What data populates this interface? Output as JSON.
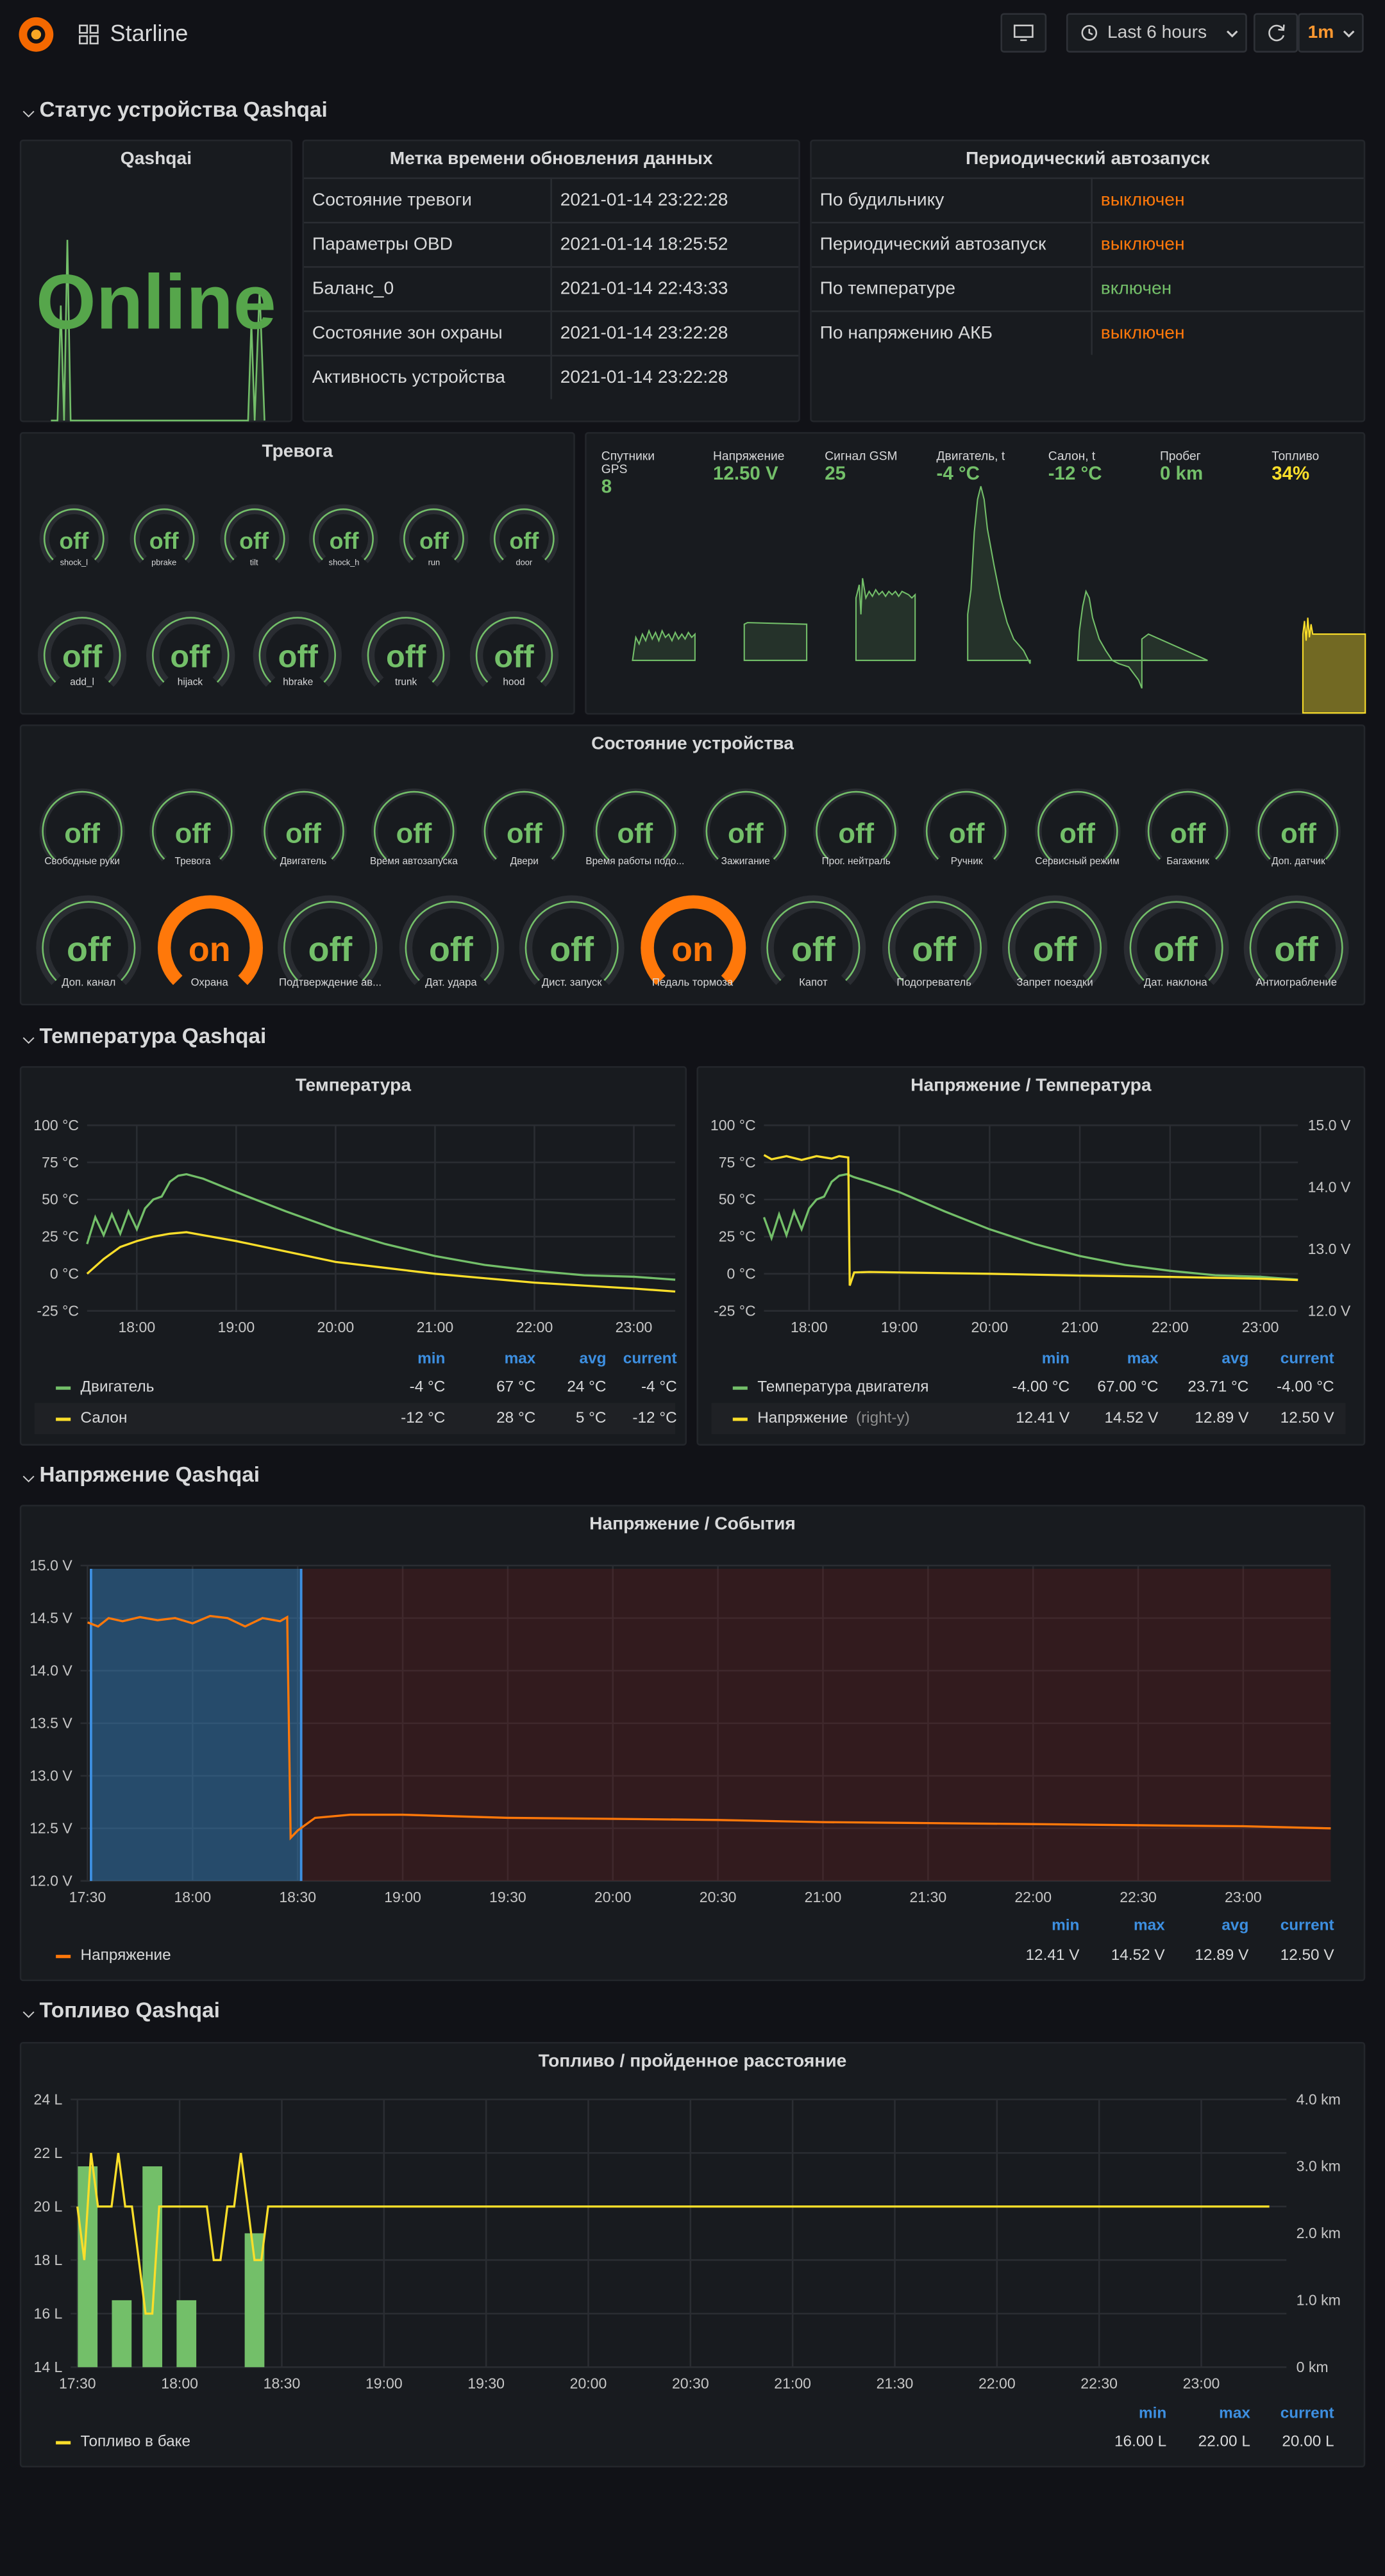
{
  "header": {
    "title": "Starline",
    "time_range": "Last 6 hours",
    "refresh": "1m"
  },
  "rows": {
    "status": "Статус устройства Qashqai",
    "temperature": "Температура Qashqai",
    "voltage": "Напряжение Qashqai",
    "fuel": "Топливо Qashqai"
  },
  "qashqai": {
    "title": "Qashqai",
    "value": "Online"
  },
  "timestamps": {
    "title": "Метка времени обновления данных",
    "rows": [
      {
        "label": "Состояние тревоги",
        "value": "2021-01-14 23:22:28"
      },
      {
        "label": "Параметры OBD",
        "value": "2021-01-14 18:25:52"
      },
      {
        "label": "Баланс_0",
        "value": "2021-01-14 22:43:33"
      },
      {
        "label": "Состояние зон охраны",
        "value": "2021-01-14 23:22:28"
      },
      {
        "label": "Активность устройства",
        "value": "2021-01-14 23:22:28"
      }
    ]
  },
  "autostart": {
    "title": "Периодический автозапуск",
    "rows": [
      {
        "label": "По будильнику",
        "value": "выключен",
        "color": "#ff780a"
      },
      {
        "label": "Периодический автозапуск",
        "value": "выключен",
        "color": "#ff780a"
      },
      {
        "label": "По температуре",
        "value": "включен",
        "color": "#73bf69"
      },
      {
        "label": "По напряжению АКБ",
        "value": "выключен",
        "color": "#ff780a"
      }
    ]
  },
  "alarm": {
    "title": "Тревога",
    "small": [
      {
        "label": "shock_l",
        "value": "off"
      },
      {
        "label": "pbrake",
        "value": "off"
      },
      {
        "label": "tilt",
        "value": "off"
      },
      {
        "label": "shock_h",
        "value": "off"
      },
      {
        "label": "run",
        "value": "off"
      },
      {
        "label": "door",
        "value": "off"
      }
    ],
    "large": [
      {
        "label": "add_l",
        "value": "off"
      },
      {
        "label": "hijack",
        "value": "off"
      },
      {
        "label": "hbrake",
        "value": "off"
      },
      {
        "label": "trunk",
        "value": "off"
      },
      {
        "label": "hood",
        "value": "off"
      }
    ]
  },
  "stats": [
    {
      "title": "Спутники GPS",
      "value": "8",
      "color": "#73bf69"
    },
    {
      "title": "Напряжение",
      "value": "12.50 V",
      "color": "#73bf69"
    },
    {
      "title": "Сигнал GSM",
      "value": "25",
      "color": "#73bf69"
    },
    {
      "title": "Двигатель, t",
      "value": "-4 °C",
      "color": "#73bf69"
    },
    {
      "title": "Салон, t",
      "value": "-12 °C",
      "color": "#73bf69"
    },
    {
      "title": "Пробег",
      "value": "0 km",
      "color": "#73bf69"
    },
    {
      "title": "Топливо",
      "value": "34%",
      "color": "#fade2a"
    }
  ],
  "device": {
    "title": "Состояние устройства",
    "row1": [
      {
        "label": "Свободные руки",
        "value": "off"
      },
      {
        "label": "Тревога",
        "value": "off"
      },
      {
        "label": "Двигатель",
        "value": "off"
      },
      {
        "label": "Время автозапуска",
        "value": "off"
      },
      {
        "label": "Двери",
        "value": "off"
      },
      {
        "label": "Время работы подо...",
        "value": "off"
      },
      {
        "label": "Зажигание",
        "value": "off"
      },
      {
        "label": "Прог. нейтраль",
        "value": "off"
      },
      {
        "label": "Ручник",
        "value": "off"
      },
      {
        "label": "Сервисный режим",
        "value": "off"
      },
      {
        "label": "Багажник",
        "value": "off"
      },
      {
        "label": "Доп. датчик",
        "value": "off"
      }
    ],
    "row2": [
      {
        "label": "Доп. канал",
        "value": "off"
      },
      {
        "label": "Охрана",
        "value": "on"
      },
      {
        "label": "Подтверждение ав...",
        "value": "off"
      },
      {
        "label": "Дат. удара",
        "value": "off"
      },
      {
        "label": "Дист. запуск",
        "value": "off"
      },
      {
        "label": "Педаль тормоза",
        "value": "on"
      },
      {
        "label": "Капот",
        "value": "off"
      },
      {
        "label": "Подогреватель",
        "value": "off"
      },
      {
        "label": "Запрет поездки",
        "value": "off"
      },
      {
        "label": "Дат. наклона",
        "value": "off"
      },
      {
        "label": "Антиограбление",
        "value": "off"
      }
    ]
  },
  "legend_heads": {
    "min": "min",
    "max": "max",
    "avg": "avg",
    "current": "current"
  },
  "temp_chart": {
    "title": "Температура",
    "legend": [
      {
        "name": "Двигатель",
        "color": "#73bf69",
        "min": "-4 °C",
        "max": "67 °C",
        "avg": "24 °C",
        "current": "-4 °C"
      },
      {
        "name": "Салон",
        "color": "#fade2a",
        "min": "-12 °C",
        "max": "28 °C",
        "avg": "5 °C",
        "current": "-12 °C"
      }
    ]
  },
  "vt_chart": {
    "title": "Напряжение / Температура",
    "legend": [
      {
        "name": "Температура двигателя",
        "color": "#73bf69",
        "min": "-4.00 °C",
        "max": "67.00 °C",
        "avg": "23.71 °C",
        "current": "-4.00 °C"
      },
      {
        "name": "Напряжение",
        "suffix": "(right-y)",
        "color": "#fade2a",
        "min": "12.41 V",
        "max": "14.52 V",
        "avg": "12.89 V",
        "current": "12.50 V"
      }
    ]
  },
  "ve_chart": {
    "title": "Напряжение / События",
    "legend": [
      {
        "name": "Напряжение",
        "color": "#ff780a",
        "min": "12.41 V",
        "max": "14.52 V",
        "avg": "12.89 V",
        "current": "12.50 V"
      }
    ]
  },
  "fuel_chart": {
    "title": "Топливо / пройденное расстояние",
    "legend": [
      {
        "name": "Топливо в баке",
        "color": "#fade2a",
        "min": "16.00 L",
        "max": "22.00 L",
        "current": "20.00 L"
      }
    ]
  },
  "chart_data": [
    {
      "type": "line",
      "id": "temperature",
      "x_ticks": [
        "18:00",
        "19:00",
        "20:00",
        "21:00",
        "22:00",
        "23:00"
      ],
      "y_ticks": [
        "100 °C",
        "75 °C",
        "50 °C",
        "25 °C",
        "0 °C",
        "-25 °C"
      ],
      "ylim": [
        -25,
        100
      ],
      "xlim": [
        "17:30",
        "23:25"
      ],
      "series": [
        {
          "name": "Двигатель",
          "color": "#73bf69",
          "x": [
            "17:30",
            "17:35",
            "17:40",
            "17:45",
            "17:50",
            "17:55",
            "18:00",
            "18:05",
            "18:10",
            "18:15",
            "18:20",
            "18:25",
            "18:30",
            "18:40",
            "19:00",
            "19:30",
            "20:00",
            "20:30",
            "21:00",
            "21:30",
            "22:00",
            "22:30",
            "23:00",
            "23:25"
          ],
          "y": [
            20,
            38,
            26,
            40,
            27,
            42,
            30,
            44,
            50,
            52,
            62,
            66,
            67,
            64,
            55,
            42,
            30,
            20,
            12,
            6,
            2,
            -1,
            -2,
            -4
          ]
        },
        {
          "name": "Салон",
          "color": "#fade2a",
          "x": [
            "17:30",
            "17:40",
            "17:50",
            "18:00",
            "18:10",
            "18:20",
            "18:30",
            "18:40",
            "19:00",
            "19:30",
            "20:00",
            "20:30",
            "21:00",
            "21:30",
            "22:00",
            "22:30",
            "23:00",
            "23:25"
          ],
          "y": [
            0,
            10,
            18,
            22,
            25,
            27,
            28,
            26,
            22,
            15,
            8,
            4,
            0,
            -3,
            -6,
            -8,
            -10,
            -12
          ]
        }
      ]
    },
    {
      "type": "line",
      "id": "voltage_temperature",
      "x_ticks": [
        "18:00",
        "19:00",
        "20:00",
        "21:00",
        "22:00",
        "23:00"
      ],
      "y_ticks": [
        "100 °C",
        "75 °C",
        "50 °C",
        "25 °C",
        "0 °C",
        "-25 °C"
      ],
      "y2_ticks": [
        "15.0 V",
        "14.0 V",
        "13.0 V",
        "12.0 V"
      ],
      "ylim": [
        -25,
        100
      ],
      "y2lim": [
        12,
        15
      ],
      "xlim": [
        "17:30",
        "23:25"
      ],
      "series": [
        {
          "name": "Температура двигателя",
          "axis": "left",
          "color": "#73bf69",
          "x": [
            "17:30",
            "17:35",
            "17:40",
            "17:45",
            "17:50",
            "17:55",
            "18:00",
            "18:05",
            "18:10",
            "18:15",
            "18:20",
            "18:25",
            "18:30",
            "18:40",
            "19:00",
            "19:30",
            "20:00",
            "20:30",
            "21:00",
            "21:30",
            "22:00",
            "22:30",
            "23:00",
            "23:25"
          ],
          "y": [
            38,
            24,
            40,
            26,
            42,
            30,
            44,
            50,
            52,
            62,
            66,
            67,
            65,
            62,
            55,
            42,
            30,
            20,
            12,
            6,
            2,
            -1,
            -2,
            -4
          ]
        },
        {
          "name": "Напряжение",
          "axis": "right",
          "color": "#fade2a",
          "x": [
            "17:30",
            "17:35",
            "17:45",
            "17:55",
            "18:05",
            "18:15",
            "18:20",
            "18:26",
            "18:27",
            "18:30",
            "18:40",
            "19:00",
            "20:00",
            "21:00",
            "22:00",
            "23:00",
            "23:25"
          ],
          "y": [
            14.52,
            14.45,
            14.5,
            14.44,
            14.5,
            14.46,
            14.5,
            14.48,
            12.41,
            12.62,
            12.63,
            12.62,
            12.6,
            12.57,
            12.55,
            12.52,
            12.5
          ]
        }
      ]
    },
    {
      "type": "line",
      "id": "voltage_events",
      "x_ticks": [
        "17:30",
        "18:00",
        "18:30",
        "19:00",
        "19:30",
        "20:00",
        "20:30",
        "21:00",
        "21:30",
        "22:00",
        "22:30",
        "23:00"
      ],
      "y_ticks": [
        "15.0 V",
        "14.5 V",
        "14.0 V",
        "13.5 V",
        "13.0 V",
        "12.5 V",
        "12.0 V"
      ],
      "ylim": [
        12,
        15
      ],
      "xlim": [
        "17:28",
        "23:25"
      ],
      "series": [
        {
          "name": "Напряжение",
          "color": "#ff780a",
          "x": [
            "17:30",
            "17:33",
            "17:36",
            "17:40",
            "17:45",
            "17:50",
            "17:55",
            "18:00",
            "18:05",
            "18:10",
            "18:15",
            "18:20",
            "18:25",
            "18:27",
            "18:28",
            "18:30",
            "18:35",
            "18:45",
            "19:00",
            "19:30",
            "20:00",
            "20:30",
            "21:00",
            "21:30",
            "22:00",
            "22:30",
            "23:00",
            "23:25"
          ],
          "y": [
            14.46,
            14.42,
            14.5,
            14.47,
            14.51,
            14.48,
            14.5,
            14.45,
            14.52,
            14.5,
            14.42,
            14.5,
            14.47,
            14.51,
            12.41,
            12.48,
            12.6,
            12.63,
            12.63,
            12.6,
            12.59,
            12.58,
            12.56,
            12.55,
            12.54,
            12.53,
            12.52,
            12.5
          ]
        }
      ]
    },
    {
      "type": "bar+line",
      "id": "fuel_distance",
      "x_ticks": [
        "17:30",
        "18:00",
        "18:30",
        "19:00",
        "19:30",
        "20:00",
        "20:30",
        "21:00",
        "21:30",
        "22:00",
        "22:30",
        "23:00"
      ],
      "y_ticks": [
        "24 L",
        "22 L",
        "20 L",
        "18 L",
        "16 L",
        "14 L"
      ],
      "y2_ticks": [
        "4.0 km",
        "3.0 km",
        "2.0 km",
        "1.0 km",
        "0 km"
      ],
      "ylim": [
        14,
        24
      ],
      "y2lim": [
        0,
        4
      ],
      "xlim": [
        "17:28",
        "23:25"
      ],
      "bars": {
        "name": "distance",
        "axis": "right",
        "color": "#73bf69",
        "x": [
          "17:33",
          "17:43",
          "17:52",
          "18:02",
          "18:22"
        ],
        "y": [
          3.0,
          1.0,
          3.0,
          1.0,
          2.0
        ]
      },
      "series": [
        {
          "name": "Топливо в баке",
          "axis": "left",
          "color": "#fade2a",
          "x": [
            "17:30",
            "17:32",
            "17:34",
            "17:36",
            "17:38",
            "17:40",
            "17:42",
            "17:44",
            "17:46",
            "17:48",
            "17:50",
            "17:52",
            "17:54",
            "17:56",
            "17:58",
            "18:00",
            "18:02",
            "18:04",
            "18:06",
            "18:08",
            "18:10",
            "18:12",
            "18:14",
            "18:16",
            "18:18",
            "18:20",
            "18:22",
            "18:24",
            "18:26",
            "18:28",
            "18:30",
            "19:00",
            "20:00",
            "21:00",
            "22:00",
            "23:00",
            "23:20"
          ],
          "y": [
            20,
            18,
            22,
            20,
            20,
            20,
            22,
            20,
            20,
            18,
            16,
            16,
            20,
            20,
            20,
            20,
            20,
            20,
            20,
            20,
            18,
            18,
            20,
            20,
            22,
            20,
            18,
            18,
            20,
            20,
            20,
            20,
            20,
            20,
            20,
            20,
            20
          ]
        }
      ]
    }
  ]
}
